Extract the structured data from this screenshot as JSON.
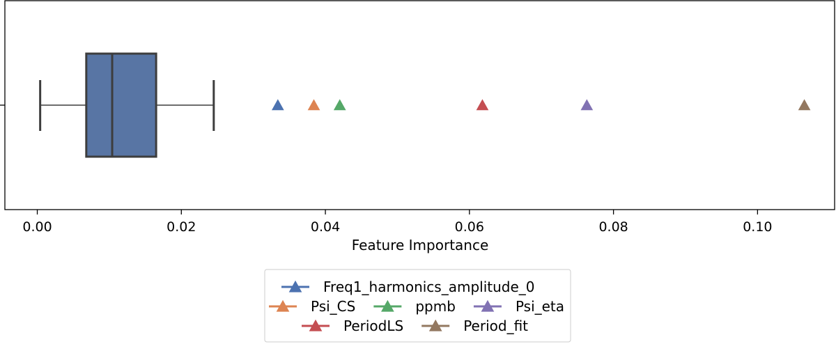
{
  "chart_data": {
    "type": "box",
    "orientation": "horizontal",
    "xlabel": "Feature Importance",
    "ylabel": "",
    "xlim": [
      -0.0045,
      0.1107
    ],
    "xticks": [
      0.0,
      0.02,
      0.04,
      0.06,
      0.08,
      0.1
    ],
    "xtick_labels": [
      "0.00",
      "0.02",
      "0.04",
      "0.06",
      "0.08",
      "0.10"
    ],
    "grid": false,
    "box": {
      "color": "#5875a4",
      "whisker_low": 0.0004,
      "q1": 0.0068,
      "median": 0.0104,
      "q3": 0.0165,
      "whisker_high": 0.0245
    },
    "markers": [
      {
        "name": "Freq1_harmonics_amplitude_0",
        "value": 0.0334,
        "color": "#4c72b0"
      },
      {
        "name": "Psi_CS",
        "value": 0.0384,
        "color": "#dd8452"
      },
      {
        "name": "ppmb",
        "value": 0.042,
        "color": "#55a868"
      },
      {
        "name": "PeriodLS",
        "value": 0.0618,
        "color": "#c44e52"
      },
      {
        "name": "Psi_eta",
        "value": 0.0763,
        "color": "#8172b3"
      },
      {
        "name": "Period_fit",
        "value": 0.1065,
        "color": "#937860"
      }
    ],
    "legend": {
      "placement": "bottom-center",
      "rows": [
        [
          "Freq1_harmonics_amplitude_0"
        ],
        [
          "Psi_CS",
          "ppmb",
          "Psi_eta"
        ],
        [
          "PeriodLS",
          "Period_fit"
        ]
      ]
    }
  }
}
